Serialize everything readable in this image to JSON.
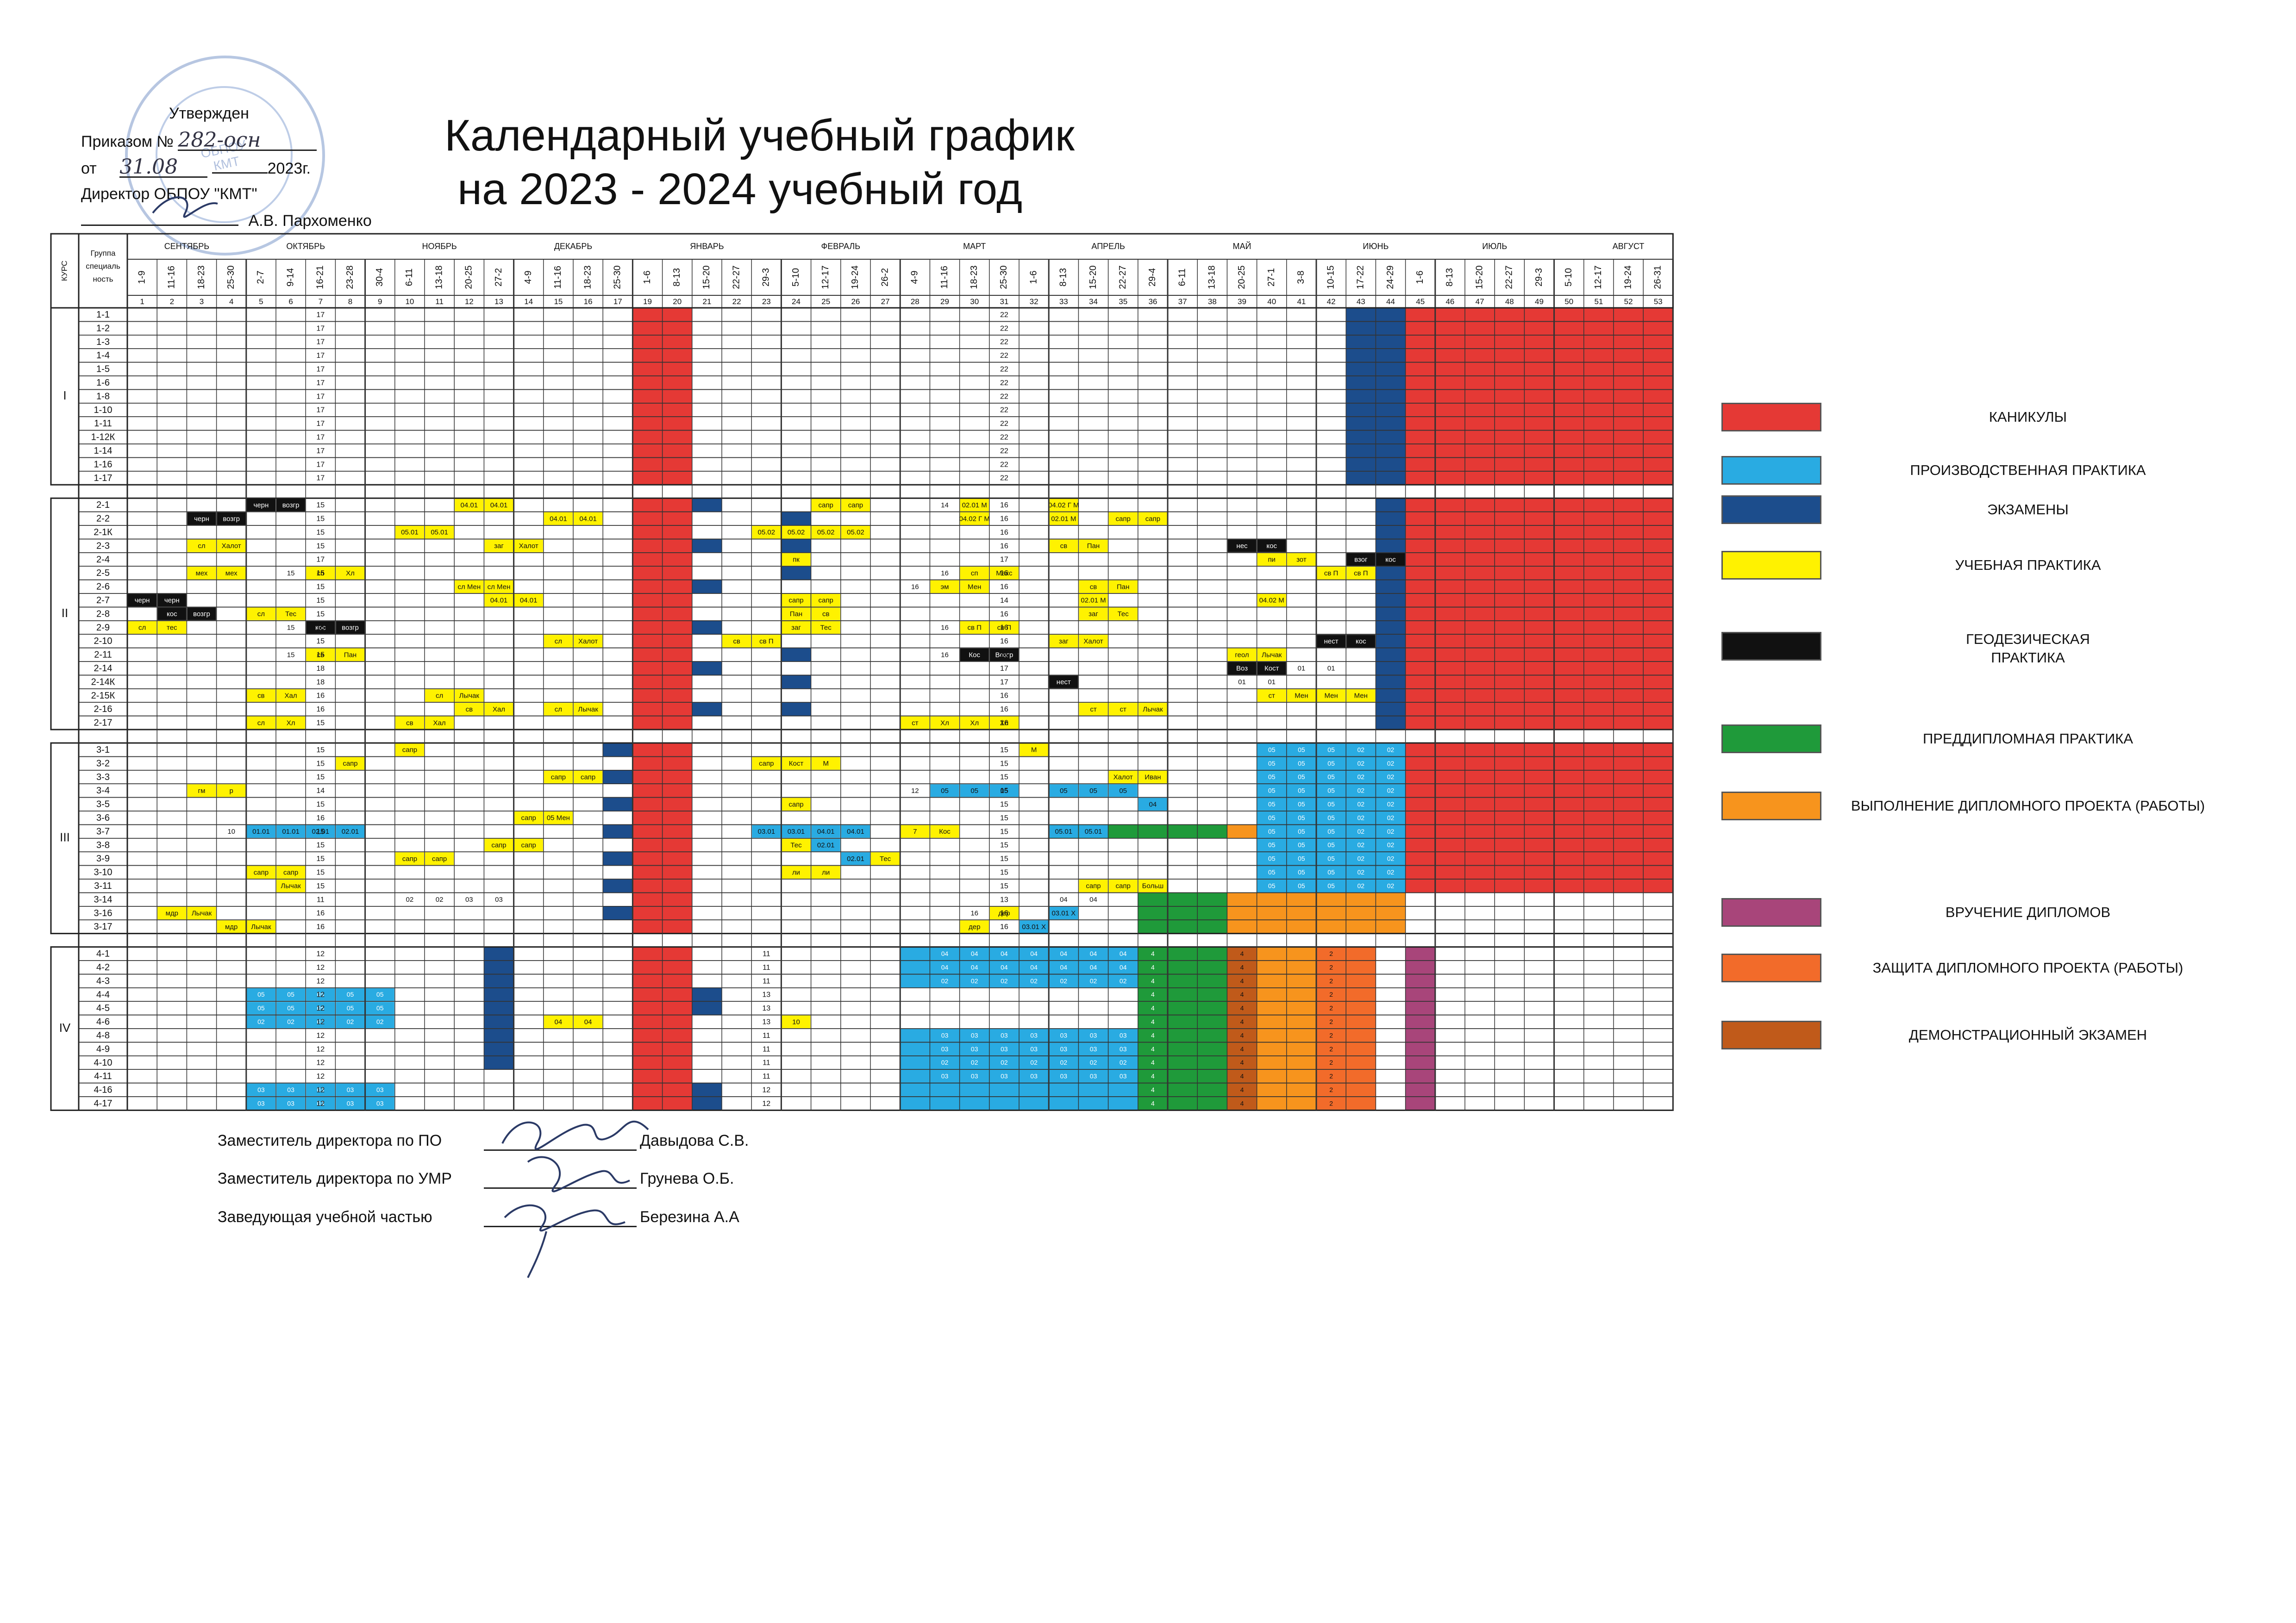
{
  "approval": {
    "approved": "Утвержден",
    "order_label": "Приказом №",
    "order_number": "282-осн",
    "from_label": "от",
    "date": "31.08",
    "year_suffix": "2023г.",
    "director_label": "Директор ОБПОУ \"КМТ\"",
    "director_name": "А.В. Пархоменко"
  },
  "title": {
    "line1": "Календарный учебный график",
    "line2": "на 2023 - 2024  учебный год"
  },
  "table": {
    "head_course": "КУРС",
    "head_group": "Группа специаль ность",
    "months": [
      {
        "label": "СЕНТЯБРЬ",
        "start": 0,
        "span": 4
      },
      {
        "label": "ОКТЯБРЬ",
        "start": 4,
        "span": 4
      },
      {
        "label": "НОЯБРЬ",
        "start": 8,
        "span": 5
      },
      {
        "label": "ДЕКАБРЬ",
        "start": 13,
        "span": 4
      },
      {
        "label": "ЯНВАРЬ",
        "start": 17,
        "span": 5
      },
      {
        "label": "ФЕВРАЛЬ",
        "start": 22,
        "span": 4
      },
      {
        "label": "МАРТ",
        "start": 26,
        "span": 5
      },
      {
        "label": "АПРЕЛЬ",
        "start": 31,
        "span": 4
      },
      {
        "label": "МАЙ",
        "start": 35,
        "span": 5
      },
      {
        "label": "ИЮНЬ",
        "start": 40,
        "span": 4
      },
      {
        "label": "ИЮЛЬ",
        "start": 44,
        "span": 4
      },
      {
        "label": "АВГУСТ",
        "start": 48,
        "span": 5
      }
    ],
    "weeks": [
      "1-9",
      "11-16",
      "18-23",
      "25-30",
      "2-7",
      "9-14",
      "16-21",
      "23-28",
      "30-4",
      "6-11",
      "13-18",
      "20-25",
      "27-2",
      "4-9",
      "11-16",
      "18-23",
      "25-30",
      "1-6",
      "8-13",
      "15-20",
      "22-27",
      "29-3",
      "5-10",
      "12-17",
      "19-24",
      "26-2",
      "4-9",
      "11-16",
      "18-23",
      "25-30",
      "1-6",
      "8-13",
      "15-20",
      "22-27",
      "29-4",
      "6-11",
      "13-18",
      "20-25",
      "27-1",
      "3-8",
      "10-15",
      "17-22",
      "24-29",
      "1-6",
      "8-13",
      "15-20",
      "22-27",
      "29-3",
      "5-10",
      "12-17",
      "19-24",
      "26-31"
    ],
    "week_numbers": [
      "1",
      "2",
      "3",
      "4",
      "5",
      "6",
      "7",
      "8",
      "9",
      "10",
      "11",
      "12",
      "13",
      "14",
      "15",
      "16",
      "17",
      "19",
      "20",
      "21",
      "22",
      "23",
      "24",
      "25",
      "26",
      "27",
      "28",
      "29",
      "30",
      "31",
      "32",
      "33",
      "34",
      "35",
      "36",
      "37",
      "38",
      "39",
      "40",
      "41",
      "42",
      "43",
      "44",
      "45",
      "46",
      "47",
      "48",
      "49",
      "50",
      "51",
      "52",
      "53"
    ],
    "courses": [
      {
        "label": "I",
        "groups": [
          "1-1",
          "1-2",
          "1-3",
          "1-4",
          "1-5",
          "1-6",
          "1-8",
          "1-10",
          "1-11",
          "1-12К",
          "1-14",
          "1-16",
          "1-17"
        ]
      },
      {
        "label": "II",
        "groups": [
          "2-1",
          "2-2",
          "2-1К",
          "2-3",
          "2-4",
          "2-5",
          "2-6",
          "2-7",
          "2-8",
          "2-9",
          "2-10",
          "2-11",
          "2-14",
          "2-14К",
          "2-15К",
          "2-16",
          "2-17"
        ]
      },
      {
        "label": "III",
        "groups": [
          "3-1",
          "3-2",
          "3-3",
          "3-4",
          "3-5",
          "3-6",
          "3-7",
          "3-8",
          "3-9",
          "3-10",
          "3-11",
          "3-14",
          "3-16",
          "3-17"
        ]
      },
      {
        "label": "IV",
        "groups": [
          "4-1",
          "4-2",
          "4-3",
          "4-4",
          "4-5",
          "4-6",
          "4-8",
          "4-9",
          "4-10",
          "4-11",
          "4-16",
          "4-17"
        ]
      }
    ],
    "week_counts": {
      "I": {
        "col7": [
          "17",
          "17",
          "17",
          "17",
          "17",
          "17",
          "17",
          "17",
          "17",
          "17",
          "17",
          "17",
          "17"
        ],
        "col30": [
          "22",
          "22",
          "22",
          "22",
          "22",
          "22",
          "22",
          "22",
          "22",
          "22",
          "22",
          "22",
          "22"
        ]
      },
      "II": {
        "col7": [
          "15",
          "15",
          "15",
          "15",
          "17",
          "15",
          "15",
          "15",
          "15",
          "15",
          "15",
          "15",
          "18",
          "18",
          "16",
          "16",
          "15"
        ],
        "col30": [
          "16",
          "16",
          "16",
          "16",
          "17",
          "16",
          "16",
          "14",
          "16",
          "16",
          "16",
          "16",
          "17",
          "17",
          "16",
          "16",
          "16"
        ]
      },
      "III": {
        "col7": [
          "15",
          "15",
          "15",
          "14",
          "15",
          "16",
          "15",
          "15",
          "15",
          "15",
          "15",
          "11",
          "16",
          "16"
        ],
        "col30": [
          "15",
          "15",
          "15",
          "15",
          "15",
          "15",
          "15",
          "15",
          "15",
          "15",
          "15",
          "13",
          "16",
          "16"
        ]
      },
      "IV": {
        "col7": [
          "12",
          "12",
          "12",
          "12",
          "12",
          "12",
          "12",
          "12",
          "12",
          "12",
          "12",
          "12"
        ],
        "col22": [
          "11",
          "11",
          "11",
          "13",
          "13",
          "13",
          "11",
          "11",
          "11",
          "11",
          "12",
          "12"
        ]
      }
    },
    "cell_marks": {
      "2-1": [
        [
          4,
          "черн"
        ],
        [
          5,
          "возгр"
        ],
        [
          11,
          "04.01"
        ],
        [
          12,
          "04.01"
        ],
        [
          23,
          "сапр"
        ],
        [
          24,
          "сапр"
        ],
        [
          27,
          "14"
        ],
        [
          28,
          "02.01 М"
        ],
        [
          31,
          "04.02 Г М"
        ]
      ],
      "2-2": [
        [
          2,
          "черн"
        ],
        [
          3,
          "возгр"
        ],
        [
          14,
          "04.01"
        ],
        [
          15,
          "04.01"
        ],
        [
          28,
          "04.02 Г М"
        ],
        [
          31,
          "02.01 М"
        ],
        [
          33,
          "сапр"
        ],
        [
          34,
          "сапр"
        ]
      ],
      "2-1К": [
        [
          9,
          "05.01"
        ],
        [
          10,
          "05.01"
        ],
        [
          21,
          "05.02"
        ],
        [
          22,
          "05.02"
        ],
        [
          23,
          "05.02"
        ],
        [
          24,
          "05.02"
        ]
      ],
      "2-3": [
        [
          2,
          "сл"
        ],
        [
          3,
          "Халот"
        ],
        [
          12,
          "заг"
        ],
        [
          13,
          "Халот"
        ],
        [
          31,
          "св"
        ],
        [
          32,
          "Пан"
        ],
        [
          37,
          "нес"
        ],
        [
          38,
          "кос"
        ]
      ],
      "2-4": [
        [
          22,
          "пк"
        ],
        [
          38,
          "пи"
        ],
        [
          39,
          "зот"
        ],
        [
          41,
          "взог"
        ],
        [
          42,
          "кос"
        ]
      ],
      "2-5": [
        [
          2,
          "мех"
        ],
        [
          3,
          "мех"
        ],
        [
          5,
          "15"
        ],
        [
          6,
          "сп"
        ],
        [
          7,
          "Хл"
        ],
        [
          27,
          "16"
        ],
        [
          28,
          "сп"
        ],
        [
          29,
          "Макс"
        ],
        [
          40,
          "св П"
        ],
        [
          41,
          "св П"
        ]
      ],
      "2-6": [
        [
          11,
          "сл Мен"
        ],
        [
          12,
          "сл Мен"
        ],
        [
          26,
          "16"
        ],
        [
          27,
          "эм"
        ],
        [
          28,
          "Мен"
        ],
        [
          32,
          "св"
        ],
        [
          33,
          "Пан"
        ]
      ],
      "2-7": [
        [
          0,
          "черн"
        ],
        [
          1,
          "черн"
        ],
        [
          12,
          "04.01"
        ],
        [
          13,
          "04.01"
        ],
        [
          22,
          "сапр"
        ],
        [
          23,
          "сапр"
        ],
        [
          32,
          "02.01 М"
        ],
        [
          38,
          "04.02 М"
        ]
      ],
      "2-8": [
        [
          1,
          "кос"
        ],
        [
          2,
          "возгр"
        ],
        [
          4,
          "сл"
        ],
        [
          5,
          "Тес"
        ],
        [
          22,
          "Пан"
        ],
        [
          23,
          "св"
        ],
        [
          32,
          "заг"
        ],
        [
          33,
          "Тес"
        ]
      ],
      "2-9": [
        [
          0,
          "сл"
        ],
        [
          1,
          "тес"
        ],
        [
          5,
          "15"
        ],
        [
          6,
          "кос"
        ],
        [
          7,
          "возгр"
        ],
        [
          22,
          "заг"
        ],
        [
          23,
          "Тес"
        ],
        [
          27,
          "16"
        ],
        [
          28,
          "св П"
        ],
        [
          29,
          "св П"
        ]
      ],
      "2-10": [
        [
          14,
          "сл"
        ],
        [
          15,
          "Халот"
        ],
        [
          20,
          "св"
        ],
        [
          21,
          "св П"
        ],
        [
          31,
          "заг"
        ],
        [
          32,
          "Халот"
        ],
        [
          40,
          "нест"
        ],
        [
          41,
          "кос"
        ]
      ],
      "2-11": [
        [
          5,
          "15"
        ],
        [
          6,
          "св"
        ],
        [
          7,
          "Пан"
        ],
        [
          27,
          "16"
        ],
        [
          28,
          "Кос"
        ],
        [
          29,
          "Возгр"
        ],
        [
          37,
          "геол"
        ],
        [
          38,
          "Лычак"
        ]
      ],
      "2-14": [
        [
          37,
          "Воз"
        ],
        [
          38,
          "Кост"
        ],
        [
          39,
          "01"
        ],
        [
          40,
          "01"
        ]
      ],
      "2-14К": [
        [
          31,
          "нест"
        ],
        [
          37,
          "01"
        ],
        [
          38,
          "01"
        ]
      ],
      "2-15К": [
        [
          4,
          "св"
        ],
        [
          5,
          "Хал"
        ],
        [
          10,
          "сл"
        ],
        [
          11,
          "Лычак"
        ],
        [
          38,
          "ст"
        ],
        [
          39,
          "Мен"
        ],
        [
          40,
          "Мен"
        ],
        [
          41,
          "Мен"
        ]
      ],
      "2-16": [
        [
          11,
          "св"
        ],
        [
          12,
          "Хал"
        ],
        [
          14,
          "сл"
        ],
        [
          15,
          "Лычак"
        ],
        [
          32,
          "ст"
        ],
        [
          33,
          "ст"
        ],
        [
          34,
          "Лычак"
        ]
      ],
      "2-17": [
        [
          4,
          "сл"
        ],
        [
          5,
          "Хл"
        ],
        [
          9,
          "св"
        ],
        [
          10,
          "Хал"
        ],
        [
          26,
          "ст"
        ],
        [
          27,
          "Хл"
        ],
        [
          28,
          "Хл"
        ],
        [
          29,
          "Хл"
        ]
      ],
      "3-1": [
        [
          9,
          "сапр"
        ],
        [
          30,
          "М"
        ]
      ],
      "3-2": [
        [
          7,
          "сапр"
        ],
        [
          21,
          "сапр"
        ],
        [
          22,
          "Кост"
        ],
        [
          23,
          "М"
        ]
      ],
      "3-3": [
        [
          14,
          "сапр"
        ],
        [
          15,
          "сапр"
        ],
        [
          33,
          "Халот"
        ],
        [
          34,
          "Иван"
        ]
      ],
      "3-4": [
        [
          2,
          "гм"
        ],
        [
          3,
          "р"
        ],
        [
          26,
          "12"
        ],
        [
          27,
          "05"
        ],
        [
          28,
          "05"
        ],
        [
          29,
          "05"
        ],
        [
          31,
          "05"
        ],
        [
          32,
          "05"
        ],
        [
          33,
          "05"
        ]
      ],
      "3-5": [
        [
          22,
          "сапр"
        ],
        [
          34,
          "04"
        ]
      ],
      "3-6": [
        [
          13,
          "сапр"
        ],
        [
          14,
          "05 Мен"
        ]
      ],
      "3-7": [
        [
          3,
          "10"
        ],
        [
          4,
          "01.01"
        ],
        [
          5,
          "01.01"
        ],
        [
          6,
          "02.01"
        ],
        [
          7,
          "02.01"
        ],
        [
          21,
          "03.01"
        ],
        [
          22,
          "03.01"
        ],
        [
          23,
          "04.01"
        ],
        [
          24,
          "04.01"
        ],
        [
          26,
          "7"
        ],
        [
          27,
          "Кос"
        ],
        [
          31,
          "05.01"
        ],
        [
          32,
          "05.01"
        ]
      ],
      "3-8": [
        [
          12,
          "сапр"
        ],
        [
          13,
          "сапр"
        ],
        [
          22,
          "Тес"
        ],
        [
          23,
          "02.01"
        ]
      ],
      "3-9": [
        [
          9,
          "сапр"
        ],
        [
          10,
          "сапр"
        ],
        [
          24,
          "02.01"
        ],
        [
          25,
          "Тес"
        ]
      ],
      "3-10": [
        [
          4,
          "сапр"
        ],
        [
          5,
          "сапр"
        ],
        [
          22,
          "ли"
        ],
        [
          23,
          "ли"
        ]
      ],
      "3-11": [
        [
          5,
          "Лычак"
        ],
        [
          32,
          "сапр"
        ],
        [
          33,
          "сапр"
        ],
        [
          34,
          "Больш"
        ]
      ],
      "3-14": [
        [
          9,
          "02"
        ],
        [
          10,
          "02"
        ],
        [
          11,
          "03"
        ],
        [
          12,
          "03"
        ],
        [
          31,
          "04"
        ],
        [
          32,
          "04"
        ]
      ],
      "3-16": [
        [
          1,
          "мдр"
        ],
        [
          2,
          "Лычак"
        ],
        [
          28,
          "16"
        ],
        [
          29,
          "дер"
        ],
        [
          31,
          "03.01 Х"
        ]
      ],
      "3-17": [
        [
          3,
          "мдр"
        ],
        [
          4,
          "Лычак"
        ],
        [
          28,
          "дер"
        ],
        [
          30,
          "03.01 Х"
        ]
      ],
      "4-6": [
        [
          14,
          "04"
        ],
        [
          15,
          "04"
        ],
        [
          22,
          "10"
        ]
      ]
    },
    "legend": [
      {
        "label": "КАНИКУЛЫ",
        "color": "#e53935"
      },
      {
        "label": "ПРОИЗВОДСТВЕННАЯ ПРАКТИКА",
        "color": "#29abe2"
      },
      {
        "label": "ЭКЗАМЕНЫ",
        "color": "#1c4d8c"
      },
      {
        "label": "УЧЕБНАЯ ПРАКТИКА",
        "color": "#fff200"
      },
      {
        "label": "ГЕОДЕЗИЧЕСКАЯ\nПРАКТИКА",
        "color": "#111111"
      },
      {
        "label": "ПРЕДДИПЛОМНАЯ ПРАКТИКА",
        "color": "#1f9a3a"
      },
      {
        "label": "ВЫПОЛНЕНИЕ ДИПЛОМНОГО ПРОЕКТА (РАБОТЫ)",
        "color": "#f7941d"
      },
      {
        "label": "ВРУЧЕНИЕ ДИПЛОМОВ",
        "color": "#a8457a"
      },
      {
        "label": "ЗАЩИТА ДИПЛОМНОГО ПРОЕКТА (РАБОТЫ)",
        "color": "#f26b2a"
      },
      {
        "label": "ДЕМОНСТРАЦИОННЫЙ ЭКЗАМЕН",
        "color": "#c05a1a"
      }
    ]
  },
  "signatures": [
    {
      "role": "Заместитель директора по ПО",
      "name": "Давыдова С.В."
    },
    {
      "role": "Заместитель директора по УМР",
      "name": "Грунева О.Б."
    },
    {
      "role": "Заведующая учебной частью",
      "name": "Березина А.А"
    }
  ]
}
